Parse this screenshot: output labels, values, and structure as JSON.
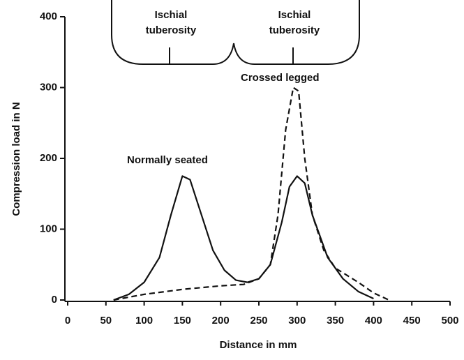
{
  "chart_data": {
    "type": "line",
    "xlabel": "Distance in mm",
    "ylabel": "Compression load in N",
    "xlim": [
      0,
      500
    ],
    "xticks": [
      0,
      50,
      100,
      150,
      200,
      250,
      300,
      350,
      400,
      450,
      500
    ],
    "ylim": [
      0,
      400
    ],
    "yticks": [
      0,
      100,
      200,
      300,
      400
    ],
    "grid": false,
    "annotations": [
      {
        "lines": [
          "Ischial",
          "tuberosity"
        ]
      },
      {
        "lines": [
          "Ischial",
          "tuberosity"
        ]
      }
    ],
    "series": [
      {
        "name": "Normally seated",
        "color": "#111111",
        "dashed": false,
        "x": [
          60,
          80,
          100,
          120,
          135,
          150,
          160,
          175,
          190,
          205,
          220,
          235,
          250,
          265,
          280,
          290,
          300,
          310,
          320,
          340,
          360,
          380,
          400
        ],
        "values": [
          0,
          8,
          25,
          60,
          120,
          175,
          170,
          120,
          70,
          42,
          28,
          25,
          30,
          50,
          110,
          160,
          175,
          165,
          120,
          60,
          30,
          12,
          2
        ]
      },
      {
        "name": "Crossed legged",
        "color": "#111111",
        "dashed": true,
        "x": [
          60,
          100,
          150,
          200,
          230,
          250,
          265,
          275,
          285,
          295,
          302,
          310,
          320,
          335,
          350,
          380,
          400,
          420
        ],
        "values": [
          0,
          8,
          15,
          20,
          22,
          30,
          50,
          120,
          240,
          300,
          295,
          200,
          120,
          70,
          45,
          25,
          10,
          0
        ]
      }
    ]
  }
}
